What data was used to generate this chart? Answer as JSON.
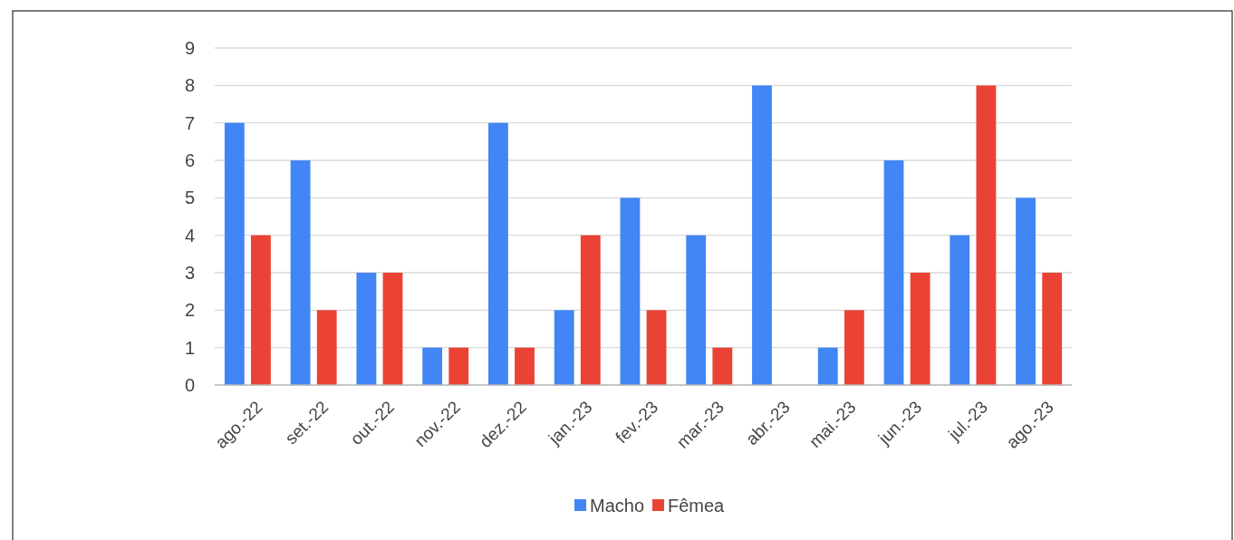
{
  "chart_data": {
    "type": "bar",
    "categories": [
      "ago.-22",
      "set.-22",
      "out.-22",
      "nov.-22",
      "dez.-22",
      "jan.-23",
      "fev.-23",
      "mar.-23",
      "abr.-23",
      "mai.-23",
      "jun.-23",
      "jul.-23",
      "ago.-23"
    ],
    "series": [
      {
        "name": "Macho",
        "color": "#4285f4",
        "values": [
          7,
          6,
          3,
          1,
          7,
          2,
          5,
          4,
          8,
          1,
          6,
          4,
          5
        ]
      },
      {
        "name": "Fêmea",
        "color": "#ea4335",
        "values": [
          4,
          2,
          3,
          1,
          1,
          4,
          2,
          1,
          0,
          2,
          3,
          8,
          3
        ]
      }
    ],
    "ylim": [
      0,
      9
    ],
    "yticks": [
      0,
      1,
      2,
      3,
      4,
      5,
      6,
      7,
      8,
      9
    ],
    "grid": "y",
    "legend": "bottom"
  }
}
